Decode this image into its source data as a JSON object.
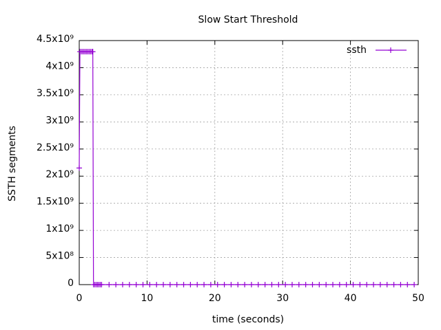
{
  "chart_data": {
    "type": "line",
    "title": "Slow Start Threshold",
    "xlabel": "time (seconds)",
    "ylabel": "SSTH segments",
    "x": [
      0,
      0.1,
      0.3,
      0.5,
      0.7,
      0.9,
      1.1,
      1.3,
      1.5,
      1.7,
      1.9,
      2.0,
      2.1,
      2.3,
      2.5,
      2.7,
      2.9,
      3.1,
      3.3,
      4.4,
      5.4,
      6.4,
      7.4,
      8.4,
      9.4,
      10.4,
      11.4,
      12.4,
      13.4,
      14.4,
      15.4,
      16.4,
      17.4,
      18.4,
      19.4,
      20.4,
      21.4,
      22.4,
      23.4,
      24.4,
      25.4,
      26.4,
      27.4,
      28.4,
      29.4,
      30.4,
      31.4,
      32.4,
      33.4,
      34.4,
      35.4,
      36.4,
      37.4,
      38.4,
      39.4,
      40.4,
      41.4,
      42.4,
      43.4,
      44.4,
      45.4,
      46.4,
      47.4,
      48.4,
      49.4
    ],
    "series": [
      {
        "name": "ssth",
        "color": "#9400d3",
        "values": [
          2150000000,
          4294967295,
          4294967295,
          4294967295,
          4294967295,
          4294967295,
          4294967295,
          4294967295,
          4294967295,
          4294967295,
          4294967295,
          4294967295,
          0,
          0,
          0,
          0,
          0,
          0,
          0,
          0,
          0,
          0,
          0,
          0,
          0,
          0,
          0,
          0,
          0,
          0,
          0,
          0,
          0,
          0,
          0,
          0,
          0,
          0,
          0,
          0,
          0,
          0,
          0,
          0,
          0,
          0,
          0,
          0,
          0,
          0,
          0,
          0,
          0,
          0,
          0,
          0,
          0,
          0,
          0,
          0,
          0,
          0,
          0,
          0,
          0
        ]
      }
    ],
    "xlim": [
      0,
      50
    ],
    "xticks": [
      0,
      10,
      20,
      30,
      40,
      50
    ],
    "ylim": [
      0,
      4500000000
    ],
    "yticks": [
      0,
      {
        "value": 500000000,
        "label": "5x10⁸"
      },
      {
        "value": 1000000000,
        "label": "1x10⁹"
      },
      {
        "value": 1500000000,
        "label": "1.5x10⁹"
      },
      {
        "value": 2000000000,
        "label": "2x10⁹"
      },
      {
        "value": 2500000000,
        "label": "2.5x10⁹"
      },
      {
        "value": 3000000000,
        "label": "3x10⁹"
      },
      {
        "value": 3500000000,
        "label": "3.5x10⁹"
      },
      {
        "value": 4000000000,
        "label": "4x10⁹"
      },
      {
        "value": 4500000000,
        "label": "4.5x10⁹"
      }
    ],
    "grid": true,
    "legend": "top-right"
  }
}
